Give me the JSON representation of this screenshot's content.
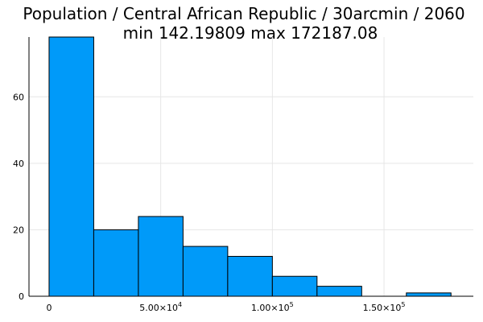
{
  "chart_data": {
    "type": "bar",
    "title_line1": "Population / Central African Republic / 30arcmin / 2060",
    "title_line2": "min 142.19809  max 172187.08",
    "bar_color": "#009af9",
    "grid": true,
    "legend": false,
    "xlim": [
      -9000,
      190000
    ],
    "ylim": [
      0,
      78
    ],
    "bins": [
      {
        "x0": 0,
        "x1": 20000,
        "count": 78
      },
      {
        "x0": 20000,
        "x1": 40000,
        "count": 20
      },
      {
        "x0": 40000,
        "x1": 60000,
        "count": 24
      },
      {
        "x0": 60000,
        "x1": 80000,
        "count": 15
      },
      {
        "x0": 80000,
        "x1": 100000,
        "count": 12
      },
      {
        "x0": 100000,
        "x1": 120000,
        "count": 6
      },
      {
        "x0": 120000,
        "x1": 140000,
        "count": 3
      },
      {
        "x0": 140000,
        "x1": 160000,
        "count": 0
      },
      {
        "x0": 160000,
        "x1": 180000,
        "count": 1
      }
    ],
    "x_ticks": [
      {
        "value": 0,
        "base": "0",
        "exp": ""
      },
      {
        "value": 50000,
        "base": "5.00×10",
        "exp": "4"
      },
      {
        "value": 100000,
        "base": "1.00×10",
        "exp": "5"
      },
      {
        "value": 150000,
        "base": "1.50×10",
        "exp": "5"
      }
    ],
    "y_ticks": [
      {
        "value": 0,
        "label": "0"
      },
      {
        "value": 20,
        "label": "20"
      },
      {
        "value": 40,
        "label": "40"
      },
      {
        "value": 60,
        "label": "60"
      }
    ]
  }
}
